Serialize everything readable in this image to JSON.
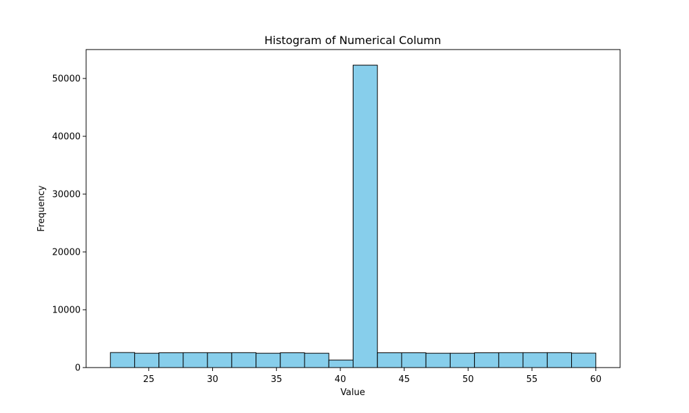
{
  "chart_data": {
    "type": "bar",
    "title": "Histogram of Numerical Column",
    "xlabel": "Value",
    "ylabel": "Frequency",
    "xlim": [
      20.1,
      61.9
    ],
    "ylim": [
      0,
      55000
    ],
    "grid": false,
    "bar_color": "#87ceeb",
    "edge_color": "#000000",
    "bins": [
      [
        22.0,
        23.9
      ],
      [
        23.9,
        25.8
      ],
      [
        25.8,
        27.7
      ],
      [
        27.7,
        29.6
      ],
      [
        29.6,
        31.5
      ],
      [
        31.5,
        33.4
      ],
      [
        33.4,
        35.3
      ],
      [
        35.3,
        37.2
      ],
      [
        37.2,
        39.1
      ],
      [
        39.1,
        41.0
      ],
      [
        41.0,
        42.9
      ],
      [
        42.9,
        44.8
      ],
      [
        44.8,
        46.7
      ],
      [
        46.7,
        48.6
      ],
      [
        48.6,
        50.5
      ],
      [
        50.5,
        52.4
      ],
      [
        52.4,
        54.3
      ],
      [
        54.3,
        56.2
      ],
      [
        56.2,
        58.1
      ],
      [
        58.1,
        60.0
      ]
    ],
    "values": [
      2600,
      2480,
      2560,
      2580,
      2560,
      2580,
      2480,
      2560,
      2480,
      1300,
      52300,
      2560,
      2560,
      2480,
      2480,
      2560,
      2580,
      2580,
      2580,
      2500
    ],
    "xticks": [
      "25",
      "30",
      "35",
      "40",
      "45",
      "50",
      "55",
      "60"
    ],
    "yticks": [
      "0",
      "10000",
      "20000",
      "30000",
      "40000",
      "50000"
    ]
  }
}
